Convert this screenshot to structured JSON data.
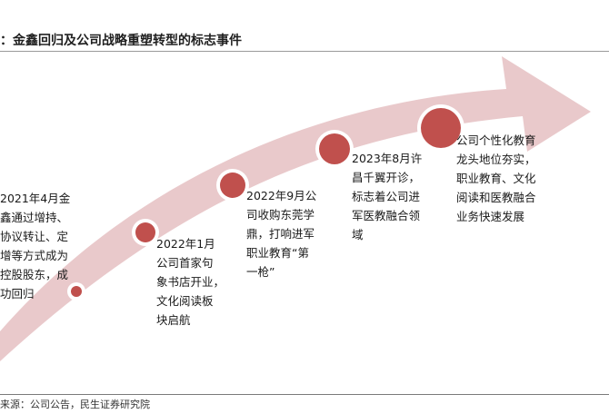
{
  "title": "：金鑫回归及公司战略重塑转型的标志事件",
  "source": "来源：公司公告，民生证券研究院",
  "colors": {
    "arrow": "#e9c9cb",
    "dot": "#c0504d"
  },
  "events": [
    {
      "text": "2021年4月金\n鑫通过增持、\n协议转让、定\n增等方式成为\n控股股东，成\n功回归"
    },
    {
      "text": "2022年1月\n公司首家句\n象书店开业，\n文化阅读板\n块启航"
    },
    {
      "text": "2022年9月公\n司收购东莞学\n鼎，打响进军\n职业教育“第\n一枪”"
    },
    {
      "text": "2023年8月许\n昌千翼开诊，\n标志着公司进\n军医教融合领\n域"
    },
    {
      "text": "公司个性化教育\n龙头地位夯实，\n职业教育、文化\n阅读和医教融合\n业务快速发展"
    }
  ]
}
